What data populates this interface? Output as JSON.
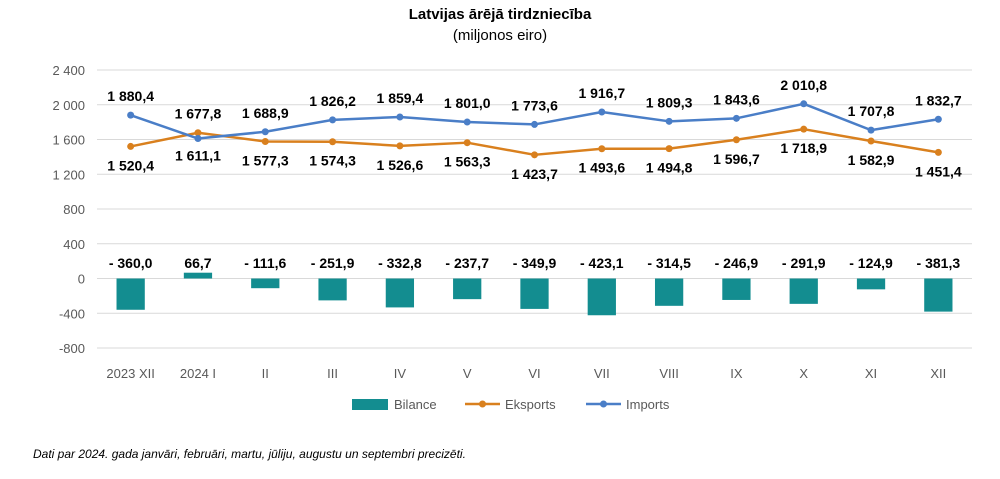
{
  "chart_data": {
    "type": "bar+line",
    "title": "Latvijas ārējā tirdzniecība",
    "subtitle": "(miljonos eiro)",
    "categories": [
      "2023 XII",
      "2024 I",
      "II",
      "III",
      "IV",
      "V",
      "VI",
      "VII",
      "VIII",
      "IX",
      "X",
      "XI",
      "XII"
    ],
    "y_ticks": [
      "2 400",
      "2 000",
      "1 600",
      "1 200",
      "800",
      "400",
      "0",
      "-400",
      "-800"
    ],
    "ylim": [
      -800,
      2400
    ],
    "grid": true,
    "legend_position": "bottom",
    "series": [
      {
        "name": "Bilance",
        "type": "bar",
        "color": "#138D90",
        "values": [
          -360.0,
          66.7,
          -111.6,
          -251.9,
          -332.8,
          -237.7,
          -349.9,
          -423.1,
          -314.5,
          -246.9,
          -291.9,
          -124.9,
          -381.3
        ],
        "labels": [
          "- 360,0",
          "66,7",
          "- 111,6",
          "- 251,9",
          "- 332,8",
          "- 237,7",
          "- 349,9",
          "- 423,1",
          "- 314,5",
          "- 246,9",
          "- 291,9",
          "- 124,9",
          "- 381,3"
        ]
      },
      {
        "name": "Eksports",
        "type": "line",
        "color": "#D9801E",
        "values": [
          1520.4,
          1677.8,
          1577.3,
          1574.3,
          1526.6,
          1563.3,
          1423.7,
          1493.6,
          1494.8,
          1596.7,
          1718.9,
          1582.9,
          1451.4
        ],
        "labels": [
          "1 520,4",
          "1 677,8",
          "1 577,3",
          "1 574,3",
          "1 526,6",
          "1 563,3",
          "1 423,7",
          "1 493,6",
          "1 494,8",
          "1 596,7",
          "1 718,9",
          "1 582,9",
          "1 451,4"
        ]
      },
      {
        "name": "Imports",
        "type": "line",
        "color": "#4A7EC7",
        "values": [
          1880.4,
          1611.1,
          1688.9,
          1826.2,
          1859.4,
          1801.0,
          1773.6,
          1916.7,
          1809.3,
          1843.6,
          2010.8,
          1707.8,
          1832.7
        ],
        "labels": [
          "1 880,4",
          "1 611,1",
          "1 688,9",
          "1 826,2",
          "1 859,4",
          "1 801,0",
          "1 773,6",
          "1 916,7",
          "1 809,3",
          "1 843,6",
          "2 010,8",
          "1 707,8",
          "1 832,7"
        ]
      }
    ]
  },
  "note": "Dati par 2024. gada janvāri, februāri, martu, jūliju, augustu un septembri precizēti."
}
